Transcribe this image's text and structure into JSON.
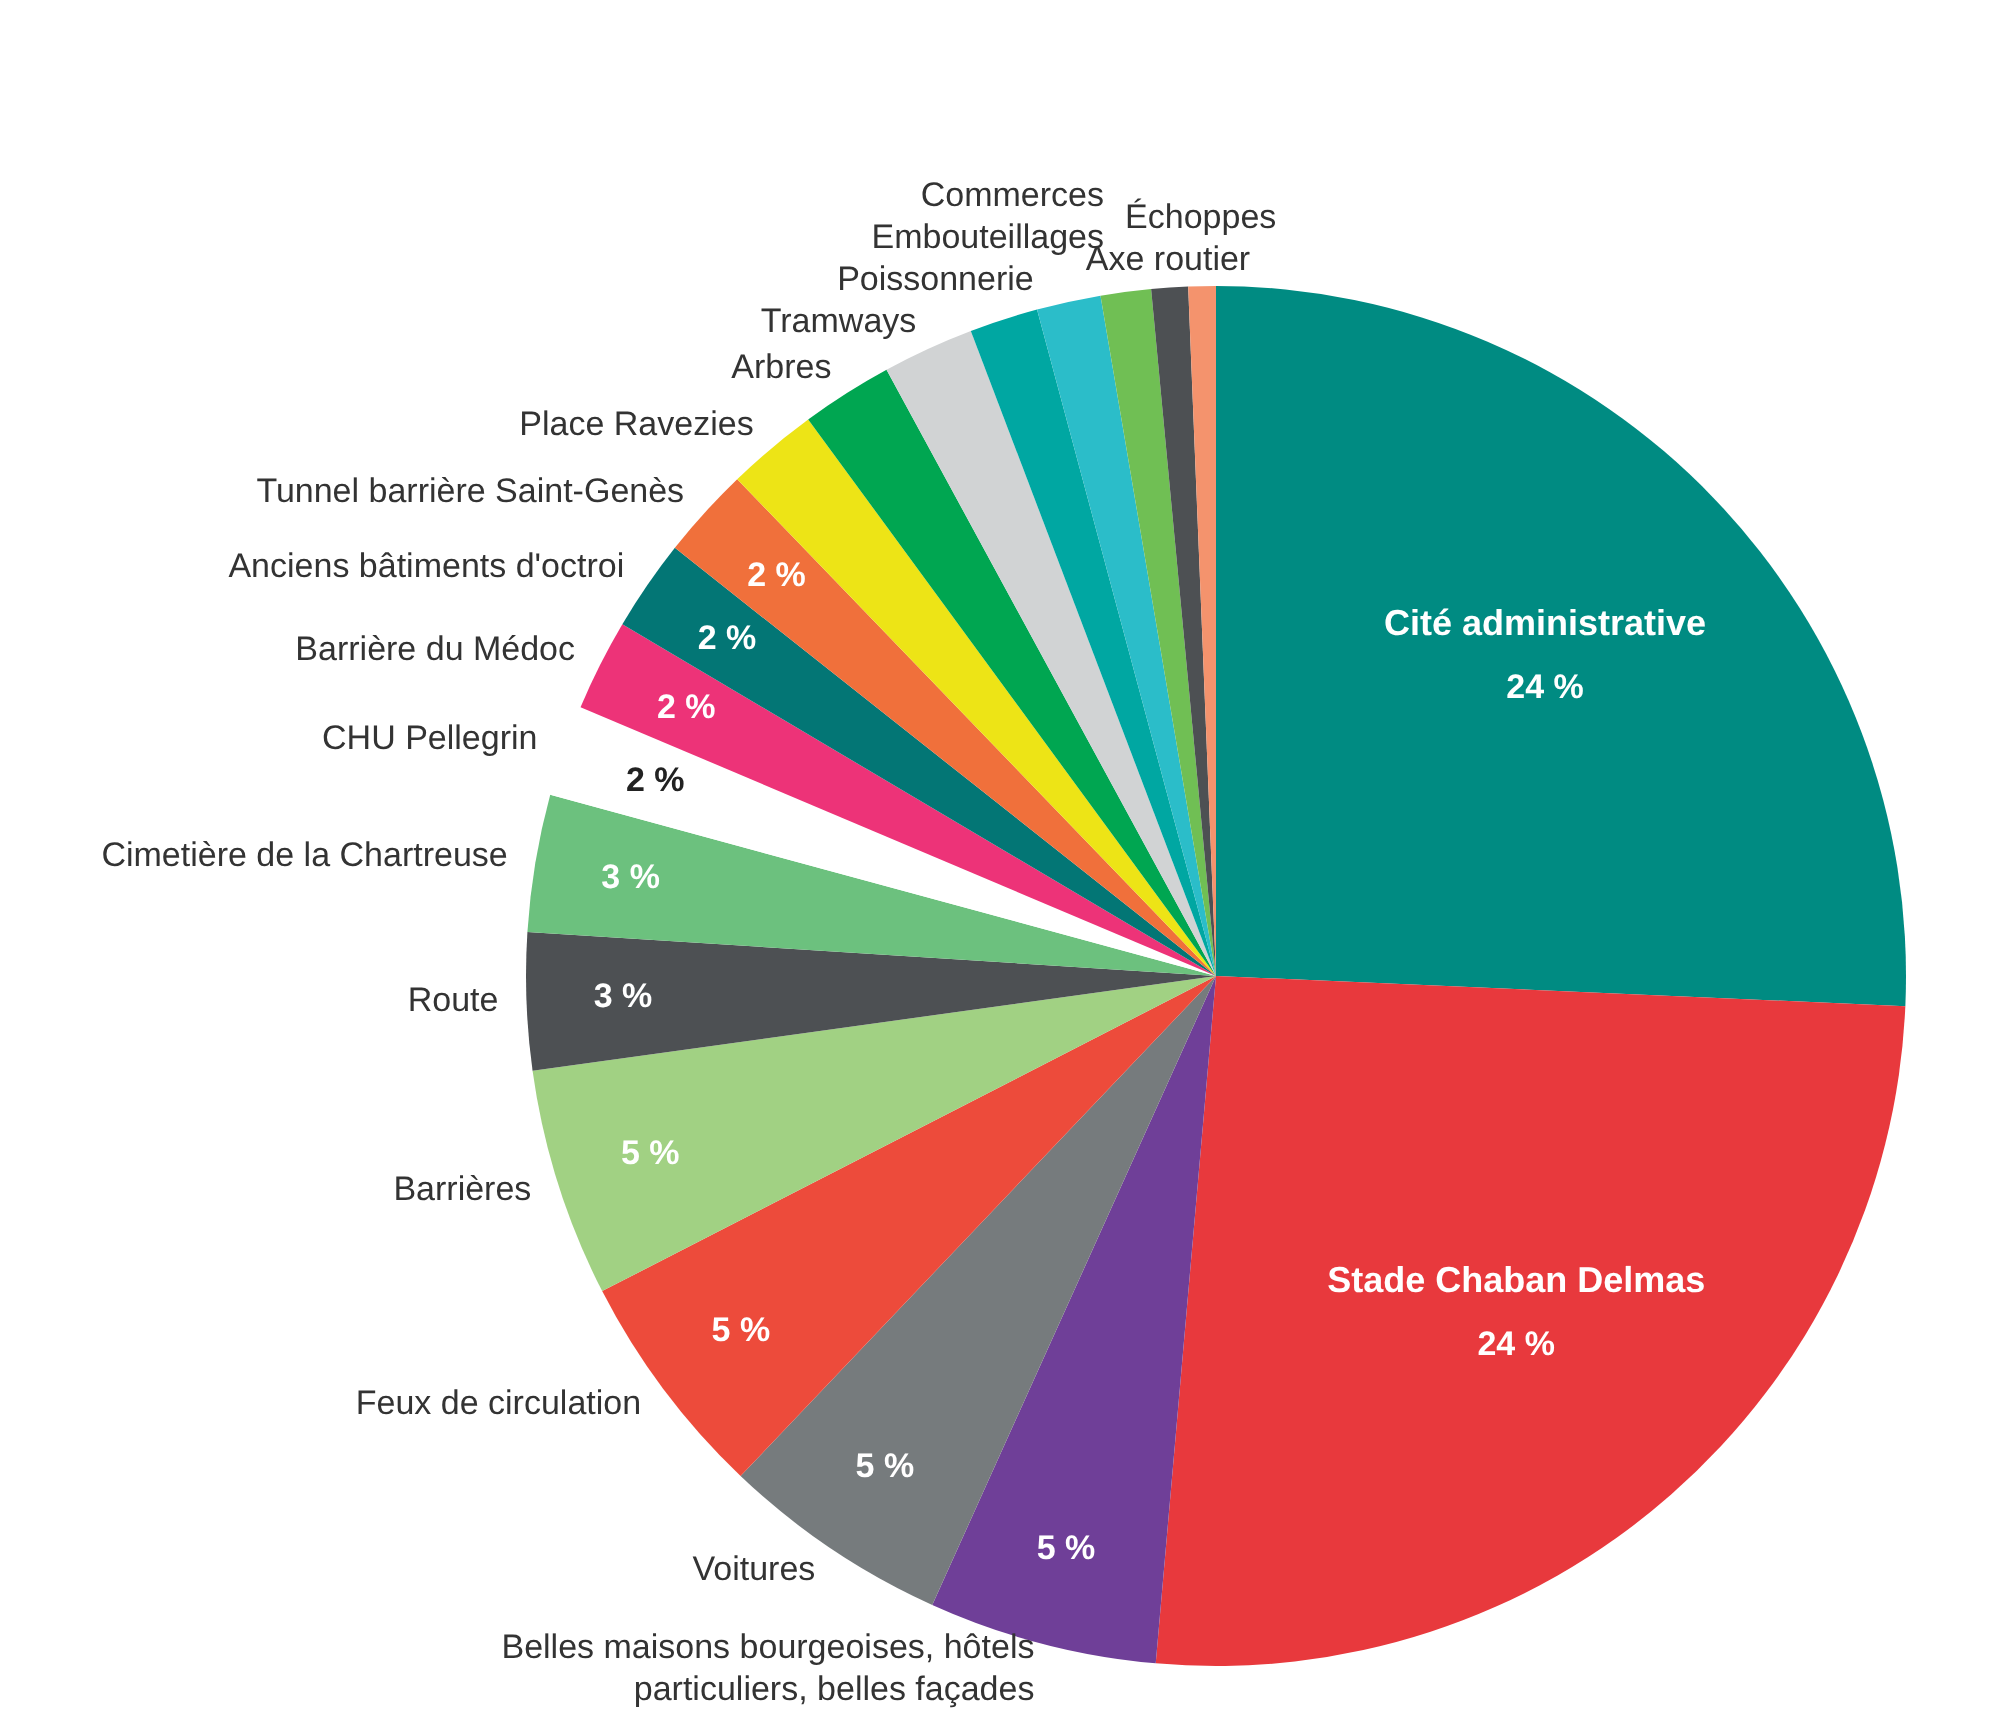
{
  "chart_data": {
    "type": "pie",
    "categories": [
      "Cité administrative",
      "Stade Chaban Delmas",
      "Belles maisons bourgeoises, hôtels particuliers, belles façades",
      "Voitures",
      "Feux de circulation",
      "Barrières",
      "Route",
      "Cimetière de la Chartreuse",
      "CHU Pellegrin",
      "Barrière du Médoc",
      "Anciens bâtiments d'octroi",
      "Tunnel barrière Saint-Genès",
      "Place Ravezies",
      "Arbres",
      "Tramways",
      "Poissonnerie",
      "Embouteillages",
      "Commerces",
      "Axe routier",
      "Échoppes"
    ],
    "values": [
      24,
      24,
      5,
      5,
      5,
      5,
      3,
      3,
      2,
      2,
      2,
      2,
      2,
      2,
      2,
      1.5,
      1.4,
      1.1,
      0.8,
      0.6
    ],
    "colors": [
      "#008b82",
      "#e8393d",
      "#6f3f98",
      "#767b7d",
      "#ed4b3b",
      "#a1d183",
      "#4d5053",
      "#6cc17e",
      "#ffffff",
      "#ed3378",
      "#037675",
      "#f0703b",
      "#ede416",
      "#00a651",
      "#d1d3d4",
      "#00a7a2",
      "#2bbdc9",
      "#70bf54",
      "#4d5053",
      "#f4936d"
    ],
    "value_labels": [
      "24 %",
      "24 %",
      "5 %",
      "5 %",
      "5 %",
      "5 %",
      "3 %",
      "3 %",
      "2 %",
      "2 %",
      "2 %",
      "2 %",
      null,
      null,
      null,
      null,
      null,
      null,
      null,
      null
    ],
    "legend": false
  }
}
